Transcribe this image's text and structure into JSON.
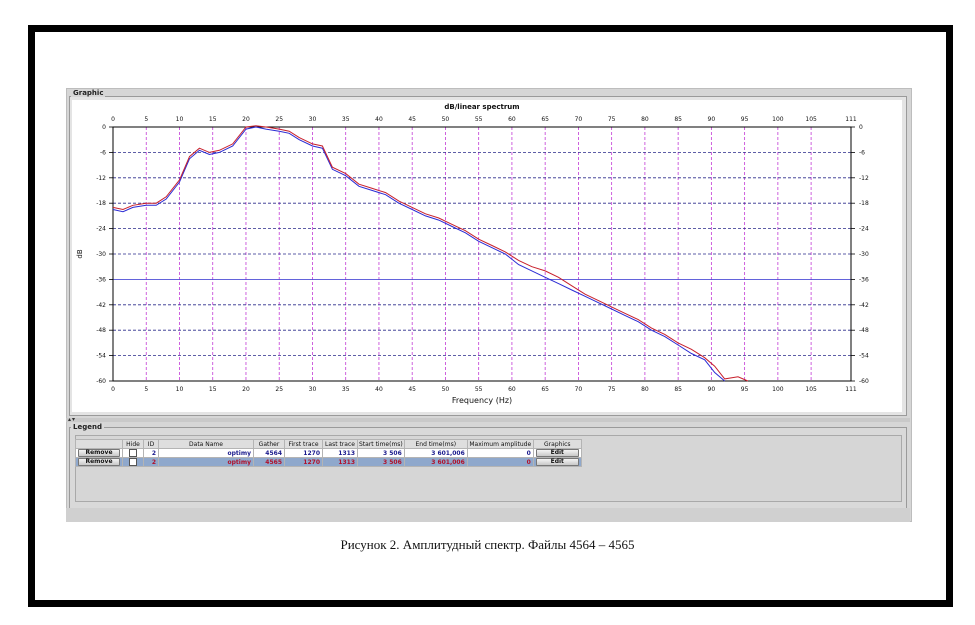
{
  "panels": {
    "graphic_title": "Graphic",
    "legend_title": "Legend"
  },
  "caption": "Рисунок 2. Амплитудный спектр. Файлы 4564 – 4565",
  "chart_data": {
    "type": "line",
    "title": "dB/linear spectrum",
    "xlabel": "Frequency (Hz)",
    "ylabel": "dB",
    "xlim": [
      0,
      111
    ],
    "ylim": [
      -60,
      0
    ],
    "x_ticks": [
      "0",
      "5",
      "10",
      "15",
      "20",
      "25",
      "30",
      "35",
      "40",
      "45",
      "50",
      "55",
      "60",
      "65",
      "70",
      "75",
      "80",
      "85",
      "90",
      "95",
      "100",
      "105",
      "111"
    ],
    "x_tick_values": [
      0,
      5,
      10,
      15,
      20,
      25,
      30,
      35,
      40,
      45,
      50,
      55,
      60,
      65,
      70,
      75,
      80,
      85,
      90,
      95,
      100,
      105,
      111
    ],
    "y_ticks": [
      "0",
      "-6",
      "-12",
      "-18",
      "-24",
      "-30",
      "-36",
      "-42",
      "-48",
      "-54",
      "-60"
    ],
    "y_tick_values": [
      0,
      -6,
      -12,
      -18,
      -24,
      -30,
      -36,
      -42,
      -48,
      -54,
      -60
    ],
    "grid": true,
    "series": [
      {
        "color": "#2b2bd4",
        "x": [
          0,
          1.5,
          3,
          5,
          6.5,
          8,
          10,
          11.5,
          13,
          14.5,
          16,
          18,
          20,
          21.5,
          23,
          25,
          26.5,
          28,
          30,
          31.5,
          33,
          35,
          37,
          39,
          41,
          43,
          45,
          47,
          49,
          51,
          53,
          55,
          57,
          59,
          61,
          63,
          65,
          67,
          69,
          71,
          73,
          75,
          77,
          79,
          81,
          83,
          85,
          87,
          89,
          90.5,
          92
        ],
        "y": [
          -19.5,
          -20,
          -19,
          -18.5,
          -18.5,
          -17,
          -13,
          -7.5,
          -5.5,
          -6.5,
          -6,
          -4.5,
          -0.5,
          0,
          -0.5,
          -1,
          -1.5,
          -3,
          -4.5,
          -5,
          -10,
          -11.5,
          -14,
          -15,
          -16,
          -18,
          -19.5,
          -21,
          -22,
          -23.5,
          -25,
          -27,
          -28.5,
          -30,
          -32.5,
          -34,
          -35.5,
          -37,
          -38.5,
          -40,
          -41.5,
          -43,
          -44.5,
          -46,
          -48,
          -49.5,
          -51.5,
          -53.5,
          -55,
          -58,
          -60
        ]
      },
      {
        "color": "#c8202c",
        "x": [
          0,
          1.5,
          3,
          5,
          6.5,
          8,
          10,
          11.5,
          13,
          14.5,
          16,
          18,
          20,
          21.5,
          23,
          25,
          26.5,
          28,
          30,
          31.5,
          33,
          35,
          37,
          39,
          41,
          43,
          45,
          47,
          49,
          51,
          53,
          55,
          57,
          59,
          61,
          63,
          65,
          67,
          69,
          71,
          73,
          75,
          77,
          79,
          81,
          83,
          85,
          87,
          89,
          90.5,
          92,
          94,
          95.5
        ],
        "y": [
          -19,
          -19.5,
          -18.5,
          -18,
          -18,
          -16.5,
          -12.5,
          -7,
          -5,
          -6,
          -5.5,
          -4,
          0,
          0.3,
          0,
          -0.5,
          -1,
          -2.5,
          -4,
          -4.5,
          -9.5,
          -11,
          -13.5,
          -14.5,
          -15.5,
          -17.5,
          -19,
          -20.5,
          -21.5,
          -23,
          -24.5,
          -26.5,
          -28,
          -29.5,
          -31.5,
          -33,
          -34,
          -35.5,
          -37.5,
          -39.5,
          -41,
          -42.5,
          -44,
          -45.5,
          -47.5,
          -49,
          -51,
          -52.5,
          -54.5,
          -56.5,
          -59.5,
          -59,
          -60
        ]
      }
    ]
  },
  "legend": {
    "columns": [
      "",
      "Hide",
      "ID",
      "Data Name",
      "Gather",
      "First trace",
      "Last trace",
      "Start time(ms)",
      "End time(ms)",
      "Maximum amplitude",
      "Graphics"
    ],
    "rows": [
      {
        "remove": "Remove",
        "id": "2",
        "data_name": "optimy",
        "gather": "4564",
        "first_trace": "1270",
        "last_trace": "1313",
        "start_time": "3 506",
        "end_time": "3 601,006",
        "max_amplitude": "0",
        "graphics": "Edit"
      },
      {
        "remove": "Remove",
        "id": "2",
        "data_name": "optimy",
        "gather": "4565",
        "first_trace": "1270",
        "last_trace": "1313",
        "start_time": "3 506",
        "end_time": "3 601,006",
        "max_amplitude": "0",
        "graphics": "Edit"
      }
    ]
  }
}
